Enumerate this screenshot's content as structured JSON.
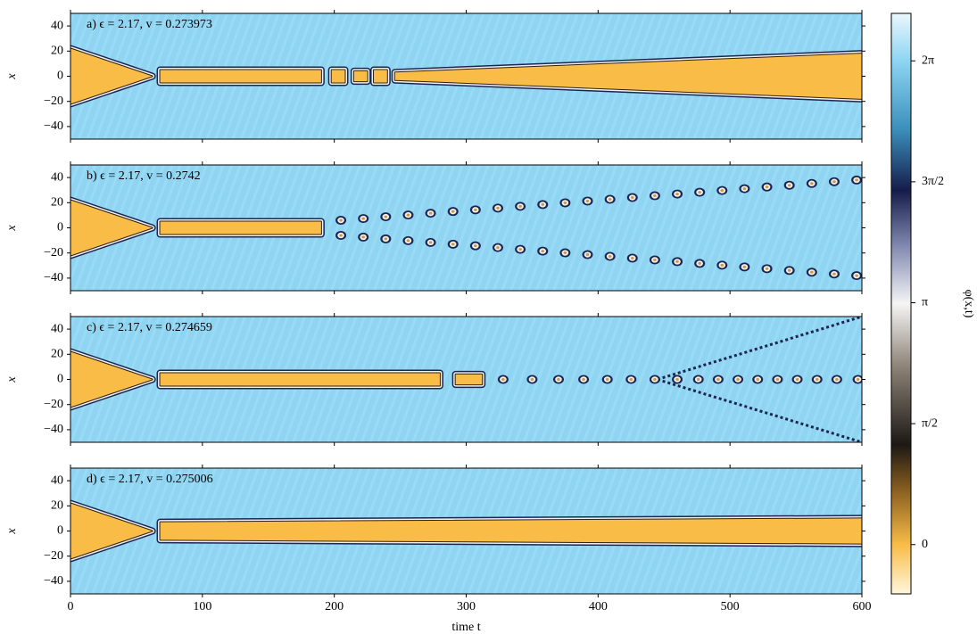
{
  "chart_data": [
    {
      "type": "heatmap",
      "title": "a) ϵ = 2.17, v = 0.273973",
      "ylabel": "x",
      "xlim": [
        0,
        600
      ],
      "ylim": [
        -50,
        50
      ],
      "xticks": [
        0,
        100,
        200,
        300,
        400,
        500,
        600
      ],
      "yticks": [
        {
          "value": -40,
          "label": "−40"
        },
        {
          "value": -20,
          "label": "−20"
        },
        0,
        20,
        40
      ],
      "regions": [
        {
          "t": [
            0,
            62
          ],
          "half_width": [
            22,
            0
          ]
        },
        {
          "t": [
            68,
            190
          ],
          "half_width": [
            5,
            5
          ]
        },
        {
          "t": [
            198,
            208
          ],
          "half_width": [
            5,
            5
          ]
        },
        {
          "t": [
            215,
            225
          ],
          "half_width": [
            4,
            4
          ]
        },
        {
          "t": [
            230,
            240
          ],
          "half_width": [
            5,
            5
          ]
        },
        {
          "t": [
            246,
            600
          ],
          "half_width": [
            3,
            18
          ]
        }
      ]
    },
    {
      "type": "heatmap",
      "title": "b) ϵ = 2.17, v = 0.2742",
      "ylabel": "x",
      "xlim": [
        0,
        600
      ],
      "ylim": [
        -50,
        50
      ],
      "xticks": [
        0,
        100,
        200,
        300,
        400,
        500,
        600
      ],
      "yticks": [
        {
          "value": -40,
          "label": "−40"
        },
        {
          "value": -20,
          "label": "−20"
        },
        0,
        20,
        40
      ],
      "regions": [
        {
          "t": [
            0,
            62
          ],
          "half_width": [
            22,
            0
          ]
        },
        {
          "t": [
            68,
            190
          ],
          "half_width": [
            5,
            5
          ]
        }
      ],
      "blobs": {
        "t": [
          205,
          222,
          239,
          256,
          273,
          290,
          307,
          324,
          341,
          358,
          375,
          392,
          409,
          426,
          443,
          460,
          477,
          494,
          511,
          528,
          545,
          562,
          579,
          596,
          205,
          222,
          239,
          256,
          273,
          290,
          307,
          324,
          341,
          358,
          375,
          392,
          409,
          426,
          443,
          460,
          477,
          494,
          511,
          528,
          545,
          562,
          579,
          596
        ],
        "x": [
          6,
          7.4,
          8.8,
          10.2,
          11.6,
          13,
          14.3,
          15.7,
          17.1,
          18.5,
          19.9,
          21.3,
          22.7,
          24.1,
          25.5,
          26.9,
          28.3,
          29.7,
          31.1,
          32.5,
          33.9,
          35.3,
          36.7,
          38,
          -6,
          -7.4,
          -8.8,
          -10.2,
          -11.6,
          -13,
          -14.3,
          -15.7,
          -17.1,
          -18.5,
          -19.9,
          -21.3,
          -22.7,
          -24.1,
          -25.5,
          -26.9,
          -28.3,
          -29.7,
          -31.1,
          -32.5,
          -33.9,
          -35.3,
          -36.7,
          -38
        ]
      }
    },
    {
      "type": "heatmap",
      "title": "c) ϵ = 2.17, v = 0.274659",
      "ylabel": "x",
      "xlim": [
        0,
        600
      ],
      "ylim": [
        -50,
        50
      ],
      "xticks": [
        0,
        100,
        200,
        300,
        400,
        500,
        600
      ],
      "yticks": [
        {
          "value": -40,
          "label": "−40"
        },
        {
          "value": -20,
          "label": "−20"
        },
        0,
        20,
        40
      ],
      "regions": [
        {
          "t": [
            0,
            62
          ],
          "half_width": [
            22,
            0
          ]
        },
        {
          "t": [
            68,
            280
          ],
          "half_width": [
            5,
            5
          ]
        },
        {
          "t": [
            292,
            312
          ],
          "half_width": [
            4,
            4
          ]
        }
      ],
      "blobs": {
        "t": [
          328,
          350,
          370,
          389,
          407,
          425,
          443,
          460,
          476,
          491,
          506,
          521,
          536,
          551,
          566,
          581,
          597
        ],
        "x": [
          0,
          0,
          0,
          0,
          0,
          0,
          0,
          0,
          0,
          0,
          0,
          0,
          0,
          0,
          0,
          0,
          0
        ]
      },
      "rays": [
        {
          "t": [
            445,
            600
          ],
          "x": [
            0,
            50
          ]
        },
        {
          "t": [
            445,
            600
          ],
          "x": [
            0,
            -50
          ]
        }
      ]
    },
    {
      "type": "heatmap",
      "title": "d) ϵ = 2.17, v = 0.275006",
      "ylabel": "x",
      "xlabel": "time t",
      "xlim": [
        0,
        600
      ],
      "ylim": [
        -50,
        50
      ],
      "xticks": [
        0,
        100,
        200,
        300,
        400,
        500,
        600
      ],
      "yticks": [
        {
          "value": -40,
          "label": "−40"
        },
        {
          "value": -20,
          "label": "−20"
        },
        0,
        20,
        40
      ],
      "regions": [
        {
          "t": [
            0,
            62
          ],
          "half_width": [
            22,
            0
          ]
        },
        {
          "t": [
            68,
            600
          ],
          "half_width": [
            7,
            10
          ]
        }
      ]
    },
    {
      "type": "colorbar",
      "label": "φ(x,t)",
      "ylim": [
        -0.64,
        6.9
      ],
      "yticks": [
        0,
        {
          "value": 1.5708,
          "label": "π/2"
        },
        {
          "value": 3.1416,
          "label": "π"
        },
        {
          "value": 4.7124,
          "label": "3π/2"
        },
        {
          "value": 6.2832,
          "label": "2π"
        }
      ]
    }
  ]
}
